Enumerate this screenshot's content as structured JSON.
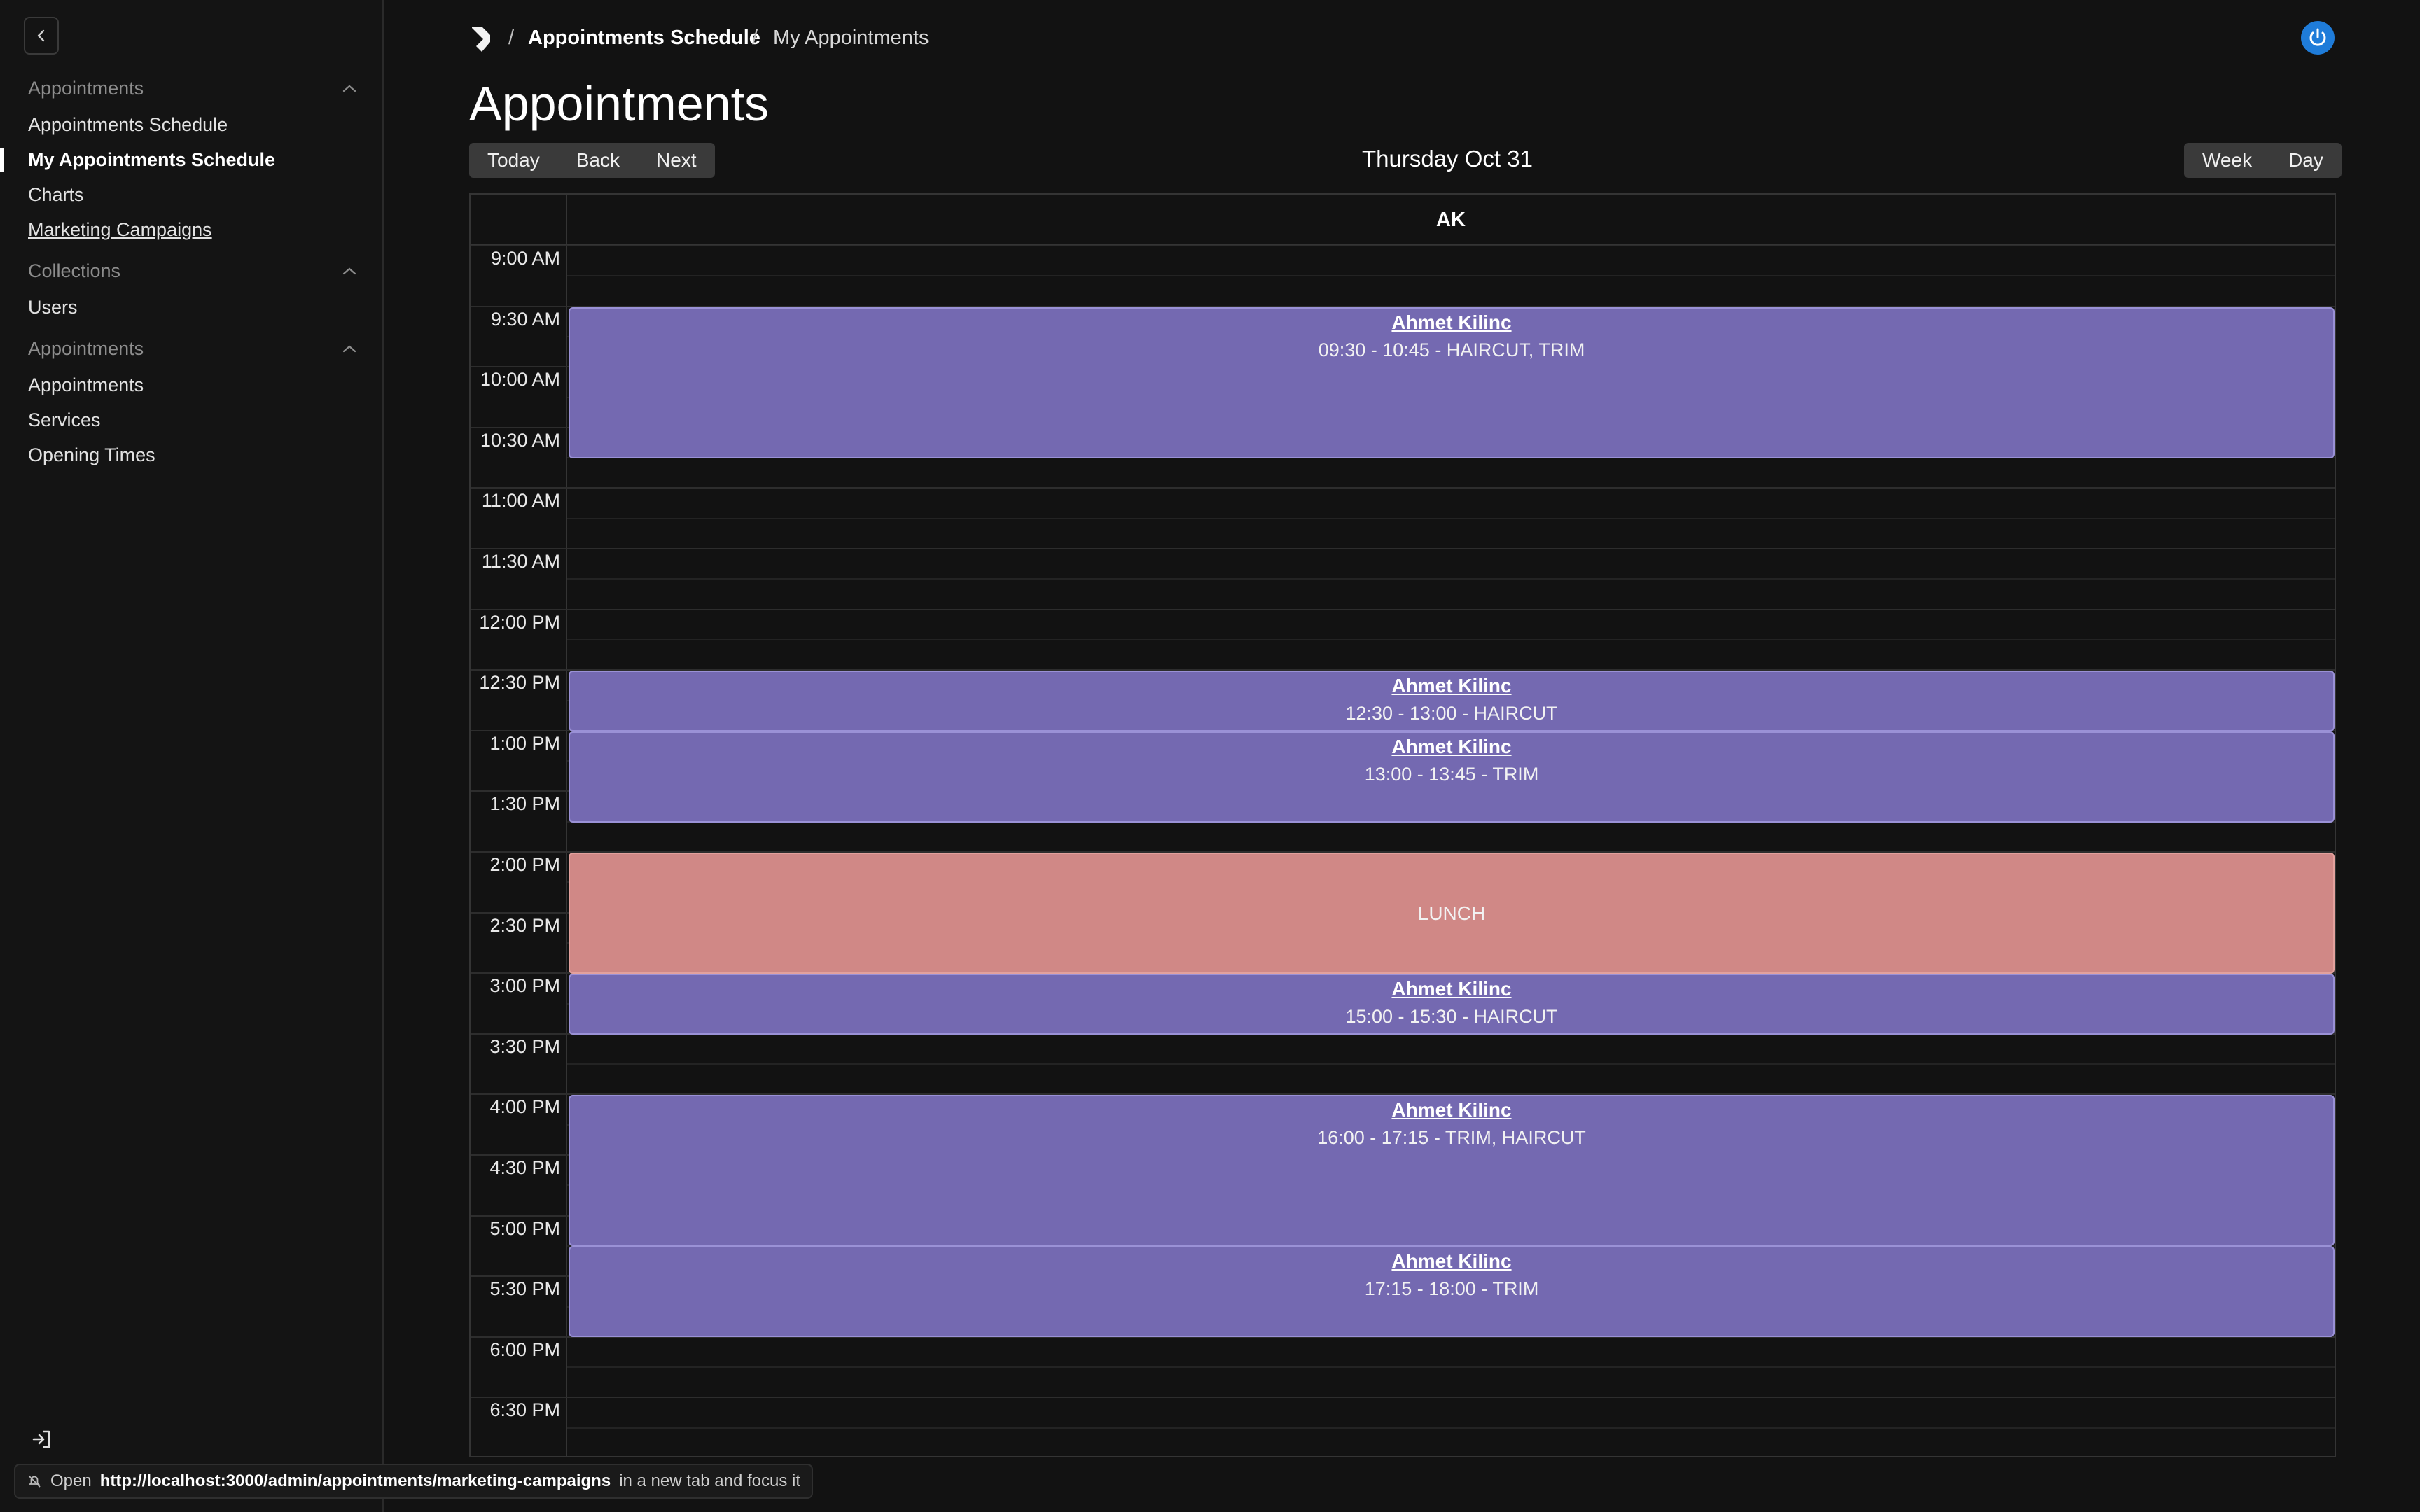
{
  "sidebar": {
    "sections": [
      {
        "title": "Appointments",
        "items": [
          "Appointments Schedule",
          "My Appointments Schedule",
          "Charts",
          "Marketing Campaigns"
        ]
      },
      {
        "title": "Collections",
        "items": [
          "Users"
        ]
      },
      {
        "title": "Appointments",
        "items": [
          "Appointments",
          "Services",
          "Opening Times"
        ]
      }
    ],
    "active_item": "My Appointments Schedule"
  },
  "breadcrumb": {
    "separator": "/",
    "parent": "Appointments Schedule",
    "current": "My Appointments"
  },
  "page_title": "Appointments",
  "toolbar": {
    "nav_buttons": [
      "Today",
      "Back",
      "Next"
    ],
    "date_label": "Thursday Oct 31",
    "view_buttons": [
      "Week",
      "Day"
    ]
  },
  "calendar": {
    "resource": "AK",
    "time_labels": [
      "9:00 AM",
      "9:30 AM",
      "10:00 AM",
      "10:30 AM",
      "11:00 AM",
      "11:30 AM",
      "12:00 PM",
      "12:30 PM",
      "1:00 PM",
      "1:30 PM",
      "2:00 PM",
      "2:30 PM",
      "3:00 PM",
      "3:30 PM",
      "4:00 PM",
      "4:30 PM",
      "5:00 PM",
      "5:30 PM",
      "6:00 PM",
      "6:30 PM"
    ],
    "events": [
      {
        "name": "Ahmet Kilinc",
        "detail": "09:30 - 10:45 - HAIRCUT, TRIM"
      },
      {
        "name": "Ahmet Kilinc",
        "detail": "12:30 - 13:00 - HAIRCUT"
      },
      {
        "name": "Ahmet Kilinc",
        "detail": "13:00 - 13:45 - TRIM"
      },
      {
        "name": "",
        "detail": "LUNCH"
      },
      {
        "name": "Ahmet Kilinc",
        "detail": "15:00 - 15:30 - HAIRCUT"
      },
      {
        "name": "Ahmet Kilinc",
        "detail": "16:00 - 17:15 - TRIM, HAIRCUT"
      },
      {
        "name": "Ahmet Kilinc",
        "detail": "17:15 - 18:00 - TRIM"
      }
    ]
  },
  "status_bar": {
    "prefix": "Open",
    "url": "http://localhost:3000/admin/appointments/marketing-campaigns",
    "suffix": "in a new tab and focus it"
  },
  "colors": {
    "appointment": "#7469b1",
    "lunch": "#d08886",
    "accent": "#1f7cd9"
  }
}
